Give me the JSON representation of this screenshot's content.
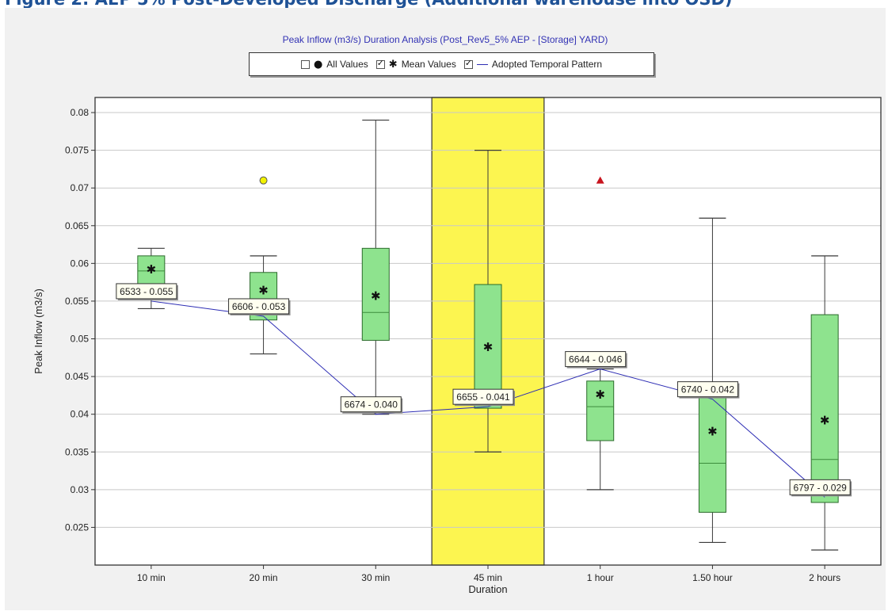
{
  "figure_heading": "Figure 2: AEP 5% Post-Developed Discharge (Additional warehouse into OSD)",
  "chart_data": {
    "type": "box",
    "title": "Peak Inflow (m3/s) Duration Analysis (Post_Rev5_5% AEP - [Storage] YARD)",
    "xlabel": "Duration",
    "ylabel": "Peak Inflow (m3/s)",
    "ylim": [
      0.02,
      0.082
    ],
    "yticks": [
      0.025,
      0.03,
      0.035,
      0.04,
      0.045,
      0.05,
      0.055,
      0.06,
      0.065,
      0.07,
      0.075,
      0.08
    ],
    "grid": true,
    "categories": [
      "10 min",
      "20 min",
      "30 min",
      "45 min",
      "1 hour",
      "1.50 hour",
      "2 hours"
    ],
    "highlighted_category": "45 min",
    "legend": {
      "position": "top",
      "entries": [
        {
          "label": "All Values",
          "checked": false,
          "symbol": "●"
        },
        {
          "label": "Mean Values",
          "checked": true,
          "symbol": "✱"
        },
        {
          "label": "Adopted Temporal Pattern",
          "checked": true,
          "symbol": "line"
        }
      ]
    },
    "boxes": [
      {
        "category": "10 min",
        "min": 0.054,
        "q1": 0.056,
        "median": 0.059,
        "q3": 0.061,
        "max": 0.062,
        "mean": 0.0593
      },
      {
        "category": "20 min",
        "min": 0.048,
        "q1": 0.0525,
        "median": 0.054,
        "q3": 0.0588,
        "max": 0.061,
        "mean": 0.0565
      },
      {
        "category": "30 min",
        "min": 0.04,
        "q1": 0.0498,
        "median": 0.0535,
        "q3": 0.062,
        "max": 0.079,
        "mean": 0.0558
      },
      {
        "category": "45 min",
        "min": 0.035,
        "q1": 0.0408,
        "median": 0.042,
        "q3": 0.0572,
        "max": 0.075,
        "mean": 0.049
      },
      {
        "category": "1 hour",
        "min": 0.03,
        "q1": 0.0365,
        "median": 0.041,
        "q3": 0.0444,
        "max": 0.046,
        "mean": 0.0427
      },
      {
        "category": "1.50 hour",
        "min": 0.023,
        "q1": 0.027,
        "median": 0.0335,
        "q3": 0.0428,
        "max": 0.066,
        "mean": 0.0378
      },
      {
        "category": "2 hours",
        "min": 0.022,
        "q1": 0.0283,
        "median": 0.034,
        "q3": 0.0532,
        "max": 0.061,
        "mean": 0.0393
      }
    ],
    "outliers": [
      {
        "category": "20 min",
        "value": 0.071,
        "shape": "circle",
        "color": "#f2f200"
      },
      {
        "category": "1 hour",
        "value": 0.071,
        "shape": "triangle",
        "color": "#c8141e"
      }
    ],
    "adopted_pattern": {
      "name": "Adopted Temporal Pattern",
      "color": "#2d2db4",
      "values": [
        0.055,
        0.053,
        0.04,
        0.041,
        0.046,
        0.042,
        0.029
      ],
      "labels": [
        "6533 - 0.055",
        "6606 - 0.053",
        "6674 - 0.040",
        "6655 - 0.041",
        "6644 - 0.046",
        "6740 - 0.042",
        "6797 - 0.029"
      ]
    },
    "colors": {
      "box_fill": "#8ee38e",
      "box_stroke": "#2a6a2a",
      "highlight": "#fcf550",
      "label_bg": "#fffff0",
      "plot_bg": "#ffffff",
      "grid": "#c8c8c8"
    }
  }
}
